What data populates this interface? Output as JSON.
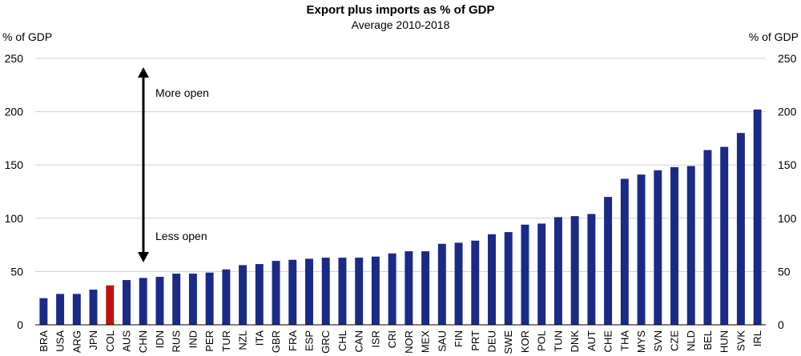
{
  "chart_data": {
    "type": "bar",
    "title": "Export plus imports as % of GDP",
    "subtitle": "Average 2010-2018",
    "ylabel_left": "% of GDP",
    "ylabel_right": "% of GDP",
    "ylim": [
      0,
      250
    ],
    "yticks": [
      0,
      50,
      100,
      150,
      200,
      250
    ],
    "grid": true,
    "categories": [
      "BRA",
      "USA",
      "ARG",
      "JPN",
      "COL",
      "AUS",
      "CHN",
      "IDN",
      "RUS",
      "IND",
      "PER",
      "TUR",
      "NZL",
      "ITA",
      "GBR",
      "FRA",
      "ESP",
      "GRC",
      "CHL",
      "CAN",
      "ISR",
      "CRI",
      "NOR",
      "MEX",
      "SAU",
      "FIN",
      "PRT",
      "DEU",
      "SWE",
      "KOR",
      "POL",
      "TUN",
      "DNK",
      "AUT",
      "CHE",
      "THA",
      "MYS",
      "SVN",
      "CZE",
      "NLD",
      "BEL",
      "HUN",
      "SVK",
      "IRL"
    ],
    "values": [
      25,
      29,
      29,
      33,
      37,
      42,
      44,
      45,
      48,
      48,
      49,
      52,
      56,
      57,
      60,
      61,
      62,
      63,
      63,
      63,
      64,
      67,
      69,
      69,
      76,
      77,
      79,
      85,
      87,
      94,
      95,
      101,
      102,
      104,
      120,
      137,
      141,
      145,
      148,
      149,
      164,
      167,
      180,
      202
    ],
    "highlight": "COL",
    "colors": {
      "bar": "#1b2a87",
      "highlight": "#c0120e",
      "grid": "#d0d0d0",
      "axis": "#000000"
    },
    "annotations": {
      "top": "More open",
      "bottom": "Less open"
    }
  }
}
